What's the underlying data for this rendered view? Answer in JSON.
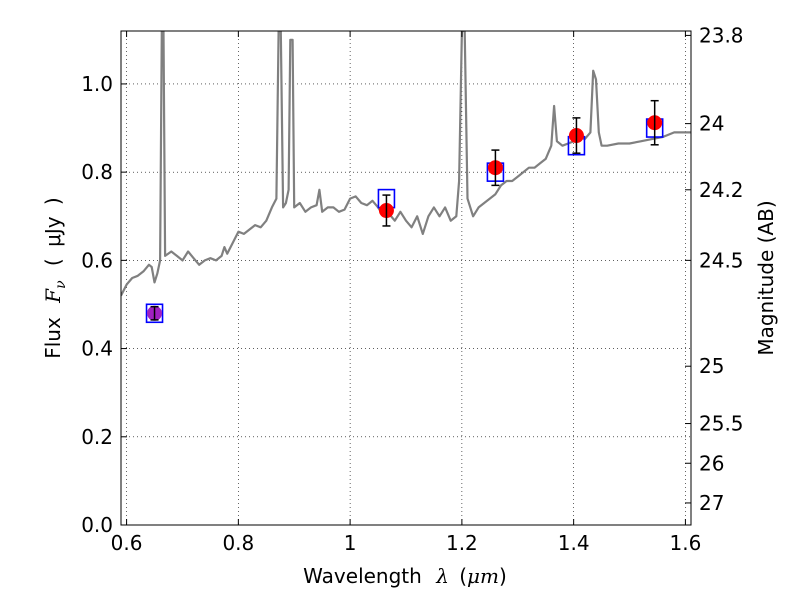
{
  "chart_data": {
    "type": "scatter",
    "title": "",
    "xlabel": {
      "prefix": "Wavelength",
      "symbol": "λ",
      "open": "(",
      "unit": "μm",
      "close": ")"
    },
    "ylabel": {
      "prefix": "Flux",
      "symbol": "F",
      "subscript": "ν",
      "open": "(",
      "unit": "μJy",
      "close": ")"
    },
    "y2label": "Magnitude (AB)",
    "xlim": [
      0.59,
      1.61
    ],
    "ylim": [
      0.0,
      1.12
    ],
    "xticks": [
      {
        "value": 0.6,
        "label": "0.6"
      },
      {
        "value": 0.8,
        "label": "0.8"
      },
      {
        "value": 1.0,
        "label": "1"
      },
      {
        "value": 1.2,
        "label": "1.2"
      },
      {
        "value": 1.4,
        "label": "1.4"
      },
      {
        "value": 1.6,
        "label": "1.6"
      }
    ],
    "yticks": [
      {
        "value": 0.0,
        "label": "0.0"
      },
      {
        "value": 0.2,
        "label": "0.2"
      },
      {
        "value": 0.4,
        "label": "0.4"
      },
      {
        "value": 0.6,
        "label": "0.6"
      },
      {
        "value": 0.8,
        "label": "0.8"
      },
      {
        "value": 1.0,
        "label": "1.0"
      }
    ],
    "y2ticks": [
      {
        "flux": 1.11,
        "label": "23.8"
      },
      {
        "flux": 0.91,
        "label": "24"
      },
      {
        "flux": 0.76,
        "label": "24.2"
      },
      {
        "flux": 0.6,
        "label": "24.5"
      },
      {
        "flux": 0.36,
        "label": "25"
      },
      {
        "flux": 0.23,
        "label": "25.5"
      },
      {
        "flux": 0.14,
        "label": "26"
      },
      {
        "flux": 0.05,
        "label": "27"
      }
    ],
    "grid": true,
    "colors": {
      "model": "#808080",
      "observed": "#ff0000",
      "model_photometry": "#0000ff",
      "overlap": "#a020c0",
      "errorbar": "#000000"
    },
    "model_spectrum": {
      "name": "",
      "points": [
        [
          0.59,
          0.52
        ],
        [
          0.6,
          0.545
        ],
        [
          0.61,
          0.56
        ],
        [
          0.62,
          0.565
        ],
        [
          0.63,
          0.575
        ],
        [
          0.64,
          0.59
        ],
        [
          0.645,
          0.585
        ],
        [
          0.65,
          0.55
        ],
        [
          0.655,
          0.57
        ],
        [
          0.66,
          0.6
        ],
        [
          0.663,
          1.12
        ],
        [
          0.666,
          1.12
        ],
        [
          0.669,
          0.61
        ],
        [
          0.68,
          0.62
        ],
        [
          0.69,
          0.61
        ],
        [
          0.7,
          0.6
        ],
        [
          0.71,
          0.62
        ],
        [
          0.72,
          0.605
        ],
        [
          0.73,
          0.59
        ],
        [
          0.74,
          0.6
        ],
        [
          0.75,
          0.605
        ],
        [
          0.76,
          0.6
        ],
        [
          0.77,
          0.61
        ],
        [
          0.775,
          0.63
        ],
        [
          0.78,
          0.615
        ],
        [
          0.79,
          0.64
        ],
        [
          0.8,
          0.665
        ],
        [
          0.81,
          0.66
        ],
        [
          0.82,
          0.67
        ],
        [
          0.83,
          0.68
        ],
        [
          0.84,
          0.675
        ],
        [
          0.85,
          0.69
        ],
        [
          0.86,
          0.72
        ],
        [
          0.868,
          0.74
        ],
        [
          0.872,
          1.12
        ],
        [
          0.876,
          1.12
        ],
        [
          0.88,
          0.72
        ],
        [
          0.885,
          0.73
        ],
        [
          0.89,
          0.76
        ],
        [
          0.893,
          1.1
        ],
        [
          0.897,
          1.1
        ],
        [
          0.9,
          0.72
        ],
        [
          0.91,
          0.73
        ],
        [
          0.92,
          0.71
        ],
        [
          0.93,
          0.72
        ],
        [
          0.94,
          0.725
        ],
        [
          0.945,
          0.76
        ],
        [
          0.95,
          0.71
        ],
        [
          0.96,
          0.72
        ],
        [
          0.97,
          0.72
        ],
        [
          0.98,
          0.71
        ],
        [
          0.99,
          0.715
        ],
        [
          1.0,
          0.74
        ],
        [
          1.01,
          0.745
        ],
        [
          1.02,
          0.73
        ],
        [
          1.03,
          0.725
        ],
        [
          1.04,
          0.735
        ],
        [
          1.05,
          0.72
        ],
        [
          1.06,
          0.7
        ],
        [
          1.07,
          0.705
        ],
        [
          1.08,
          0.69
        ],
        [
          1.09,
          0.71
        ],
        [
          1.1,
          0.69
        ],
        [
          1.11,
          0.675
        ],
        [
          1.12,
          0.7
        ],
        [
          1.13,
          0.66
        ],
        [
          1.14,
          0.7
        ],
        [
          1.15,
          0.72
        ],
        [
          1.16,
          0.7
        ],
        [
          1.17,
          0.72
        ],
        [
          1.18,
          0.69
        ],
        [
          1.19,
          0.7
        ],
        [
          1.195,
          0.78
        ],
        [
          1.2,
          1.12
        ],
        [
          1.205,
          1.12
        ],
        [
          1.21,
          0.74
        ],
        [
          1.22,
          0.7
        ],
        [
          1.23,
          0.72
        ],
        [
          1.24,
          0.73
        ],
        [
          1.25,
          0.74
        ],
        [
          1.26,
          0.75
        ],
        [
          1.27,
          0.77
        ],
        [
          1.28,
          0.78
        ],
        [
          1.29,
          0.78
        ],
        [
          1.3,
          0.79
        ],
        [
          1.31,
          0.8
        ],
        [
          1.32,
          0.81
        ],
        [
          1.33,
          0.81
        ],
        [
          1.34,
          0.82
        ],
        [
          1.35,
          0.83
        ],
        [
          1.36,
          0.86
        ],
        [
          1.365,
          0.95
        ],
        [
          1.37,
          0.87
        ],
        [
          1.38,
          0.86
        ],
        [
          1.39,
          0.865
        ],
        [
          1.4,
          0.87
        ],
        [
          1.41,
          0.88
        ],
        [
          1.42,
          0.875
        ],
        [
          1.43,
          0.89
        ],
        [
          1.435,
          1.03
        ],
        [
          1.44,
          1.01
        ],
        [
          1.445,
          0.89
        ],
        [
          1.45,
          0.86
        ],
        [
          1.46,
          0.86
        ],
        [
          1.48,
          0.865
        ],
        [
          1.5,
          0.865
        ],
        [
          1.52,
          0.87
        ],
        [
          1.54,
          0.875
        ],
        [
          1.56,
          0.88
        ],
        [
          1.58,
          0.89
        ],
        [
          1.6,
          0.89
        ],
        [
          1.61,
          0.89
        ]
      ]
    },
    "observed_photometry": {
      "name": "",
      "points": [
        {
          "x": 0.65,
          "y": 0.48,
          "yerr": 0.015
        },
        {
          "x": 1.065,
          "y": 0.713,
          "yerr": 0.035
        },
        {
          "x": 1.26,
          "y": 0.81,
          "yerr": 0.04
        },
        {
          "x": 1.405,
          "y": 0.883,
          "yerr": 0.04
        },
        {
          "x": 1.545,
          "y": 0.912,
          "yerr": 0.05
        }
      ]
    },
    "model_photometry": {
      "name": "",
      "points": [
        {
          "x": 0.65,
          "y": 0.48
        },
        {
          "x": 1.065,
          "y": 0.74
        },
        {
          "x": 1.26,
          "y": 0.8
        },
        {
          "x": 1.405,
          "y": 0.86
        },
        {
          "x": 1.545,
          "y": 0.9
        }
      ]
    }
  }
}
